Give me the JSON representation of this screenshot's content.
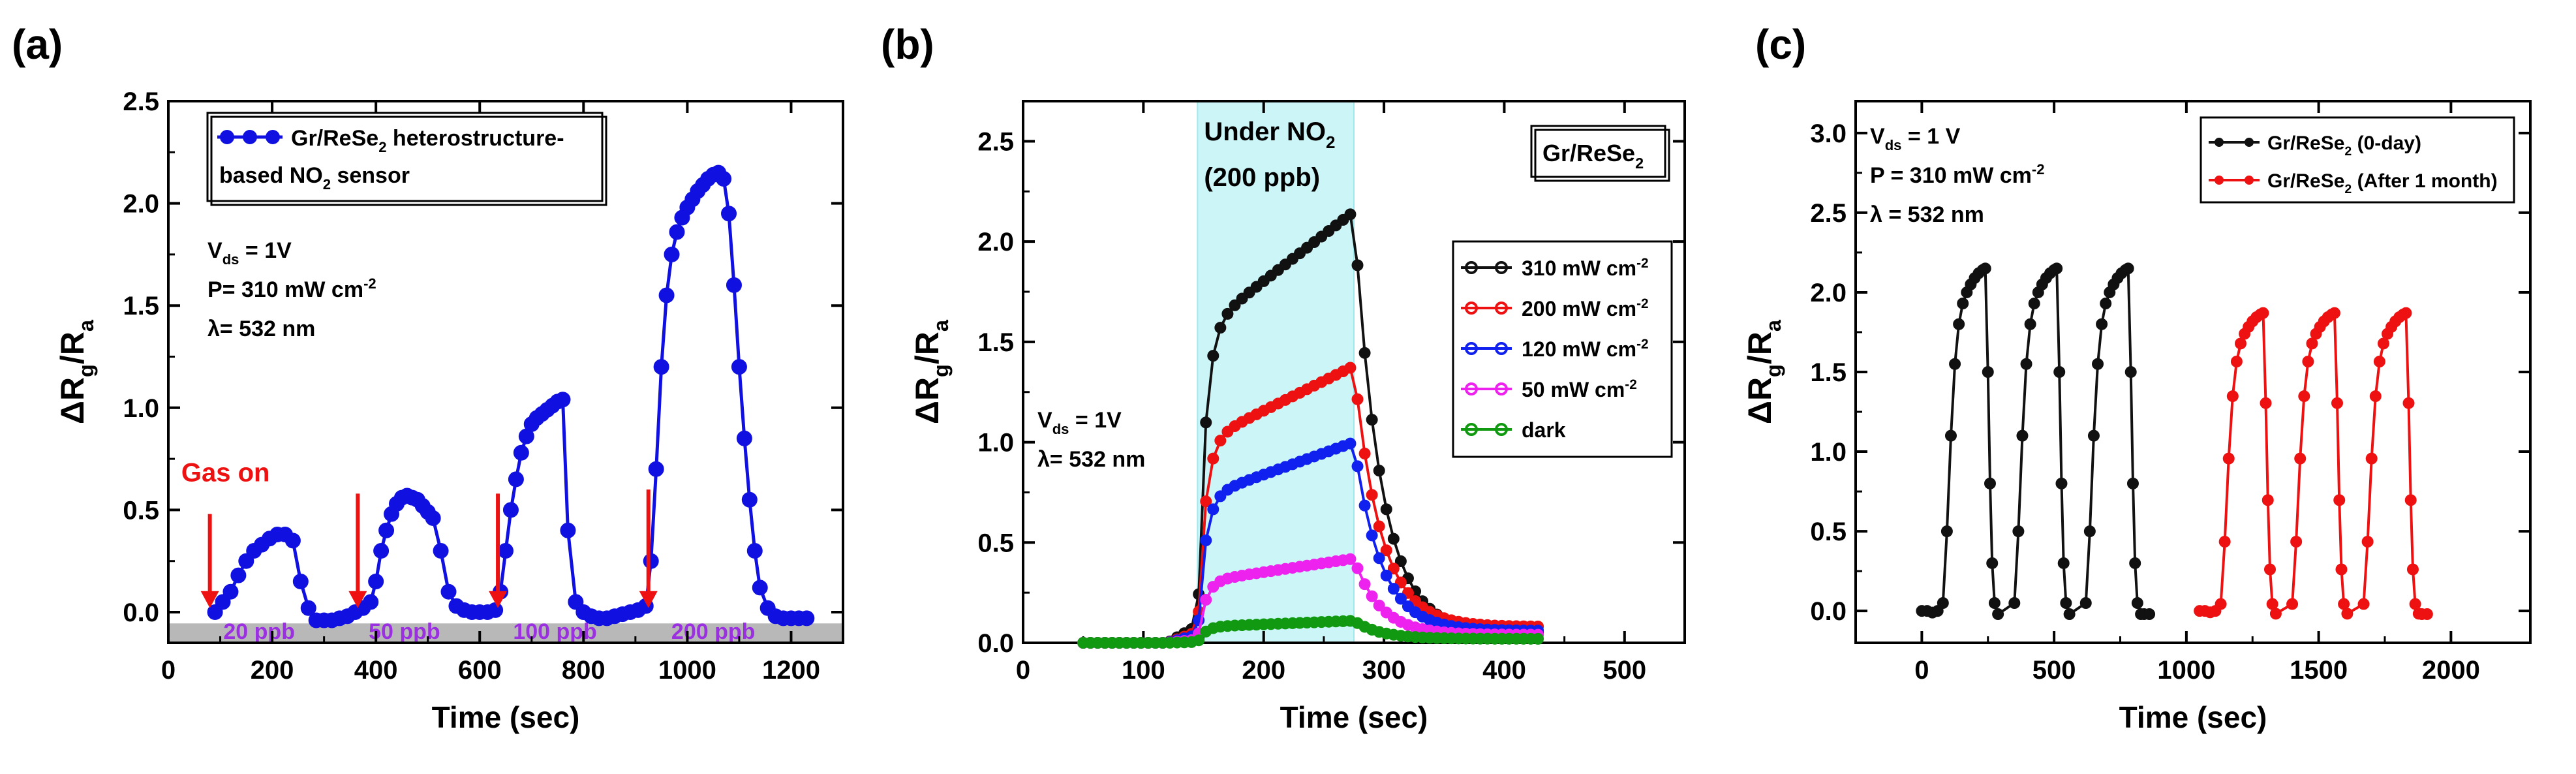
{
  "chart_data": [
    {
      "type": "line",
      "panel_label": "(a)",
      "xlabel": "Time (sec)",
      "ylabel": "ΔR",
      "ylabel_sub1": "g",
      "ylabel_mid": "/R",
      "ylabel_sub2": "a",
      "xlim": [
        0,
        1300
      ],
      "ylim": [
        -0.15,
        2.5
      ],
      "xticks": [
        0,
        200,
        400,
        600,
        800,
        1000,
        1200
      ],
      "yticks": [
        0.0,
        0.5,
        1.0,
        1.5,
        2.0,
        2.5
      ],
      "xtick_labels": [
        "0",
        "200",
        "400",
        "600",
        "800",
        "1000",
        "1200"
      ],
      "ytick_labels": [
        "0.0",
        "0.5",
        "1.0",
        "1.5",
        "2.0",
        "2.5"
      ],
      "color": "#1010e0",
      "legend": {
        "line1": "Gr/ReSe",
        "line1_sub": "2",
        "line1_tail": " heterostructure-",
        "line2": "based NO",
        "line2_sub": "2",
        "line2_tail": " sensor"
      },
      "conditions": {
        "vds": "V",
        "vds_sub": "ds",
        "vds_tail": " = 1V",
        "power": "P= 310 mW cm",
        "power_sup": "-2",
        "wavelength": "λ= 532 nm"
      },
      "gas_on_label": "Gas on",
      "gas_arrow_times": [
        80,
        365,
        635,
        925
      ],
      "concentration_labels": [
        "20 ppb",
        "50 ppb",
        "100 ppb",
        "200 ppb"
      ],
      "concentration_label_x": [
        175,
        455,
        745,
        1050
      ],
      "bar_y": [
        -0.15,
        -0.055
      ],
      "series": [
        {
          "name": "Gr/ReSe2 heterostructure-based NO2 sensor",
          "x": [
            90,
            105,
            120,
            135,
            150,
            165,
            180,
            195,
            210,
            225,
            240,
            255,
            270,
            285,
            300,
            315,
            330,
            345,
            360,
            375,
            390,
            400,
            410,
            420,
            430,
            440,
            450,
            460,
            470,
            480,
            490,
            500,
            510,
            525,
            540,
            555,
            570,
            585,
            600,
            615,
            630,
            640,
            650,
            660,
            670,
            680,
            690,
            700,
            710,
            720,
            730,
            740,
            750,
            760,
            770,
            785,
            800,
            815,
            830,
            845,
            860,
            875,
            890,
            905,
            920,
            930,
            940,
            950,
            960,
            970,
            980,
            990,
            1000,
            1010,
            1020,
            1030,
            1040,
            1050,
            1060,
            1070,
            1080,
            1090,
            1100,
            1110,
            1120,
            1130,
            1140,
            1155,
            1170,
            1185,
            1200,
            1215,
            1230
          ],
          "y": [
            0.0,
            0.05,
            0.1,
            0.18,
            0.25,
            0.3,
            0.33,
            0.36,
            0.38,
            0.38,
            0.35,
            0.15,
            0.02,
            -0.04,
            -0.04,
            -0.04,
            -0.03,
            -0.02,
            0.0,
            0.02,
            0.05,
            0.15,
            0.3,
            0.4,
            0.48,
            0.53,
            0.56,
            0.57,
            0.56,
            0.55,
            0.52,
            0.49,
            0.46,
            0.3,
            0.1,
            0.03,
            0.01,
            0.0,
            0.0,
            0.0,
            0.01,
            0.1,
            0.3,
            0.5,
            0.65,
            0.78,
            0.86,
            0.92,
            0.95,
            0.97,
            0.99,
            1.01,
            1.03,
            1.04,
            0.4,
            0.05,
            0.0,
            -0.02,
            -0.03,
            -0.03,
            -0.02,
            -0.01,
            0.0,
            0.01,
            0.03,
            0.25,
            0.7,
            1.2,
            1.55,
            1.75,
            1.86,
            1.93,
            1.98,
            2.02,
            2.06,
            2.09,
            2.12,
            2.14,
            2.15,
            2.12,
            1.95,
            1.6,
            1.2,
            0.85,
            0.55,
            0.3,
            0.12,
            0.02,
            -0.02,
            -0.03,
            -0.03,
            -0.03,
            -0.03
          ]
        }
      ]
    },
    {
      "type": "line",
      "panel_label": "(b)",
      "xlabel": "Time (sec)",
      "ylabel": "ΔR",
      "ylabel_sub1": "g",
      "ylabel_mid": "/R",
      "ylabel_sub2": "a",
      "xlim": [
        0,
        550
      ],
      "ylim": [
        0.0,
        2.7
      ],
      "xticks": [
        0,
        100,
        200,
        300,
        400,
        500
      ],
      "yticks": [
        0.0,
        0.5,
        1.0,
        1.5,
        2.0,
        2.5
      ],
      "xtick_labels": [
        "0",
        "100",
        "200",
        "300",
        "400",
        "500"
      ],
      "ytick_labels": [
        "0.0",
        "0.5",
        "1.0",
        "1.5",
        "2.0",
        "2.5"
      ],
      "shaded_region": [
        145,
        275
      ],
      "shaded_color": "#ccf5f8",
      "shaded_label1": "Under NO",
      "shaded_label1_sub": "2",
      "shaded_label2": "(200 ppb)",
      "box_label": "Gr/ReSe",
      "box_label_sub": "2",
      "conditions": {
        "vds": "V",
        "vds_sub": "ds",
        "vds_tail": " = 1V",
        "wavelength": "λ= 532 nm"
      },
      "series": [
        {
          "name": "310 mW cm",
          "sup": "-2",
          "color": "#111111",
          "gas_value": 2.15,
          "tail_value": 0.05
        },
        {
          "name": "200 mW cm",
          "sup": "-2",
          "color": "#ee1111",
          "gas_value": 1.38,
          "tail_value": 0.08
        },
        {
          "name": "120 mW cm",
          "sup": "-2",
          "color": "#1020ee",
          "gas_value": 1.0,
          "tail_value": 0.06
        },
        {
          "name": "50 mW cm",
          "sup": "-2",
          "color": "#ee22ee",
          "gas_value": 0.42,
          "tail_value": 0.04
        },
        {
          "name": "dark",
          "sup": "",
          "color": "#119911",
          "gas_value": 0.11,
          "tail_value": 0.02
        }
      ]
    },
    {
      "type": "line",
      "panel_label": "(c)",
      "xlabel": "Time (sec)",
      "ylabel": "ΔR",
      "ylabel_sub1": "g",
      "ylabel_mid": "/R",
      "ylabel_sub2": "a",
      "xlim": [
        -250,
        2300
      ],
      "ylim": [
        -0.2,
        3.2
      ],
      "xticks": [
        0,
        500,
        1000,
        1500,
        2000
      ],
      "yticks": [
        0.0,
        0.5,
        1.0,
        1.5,
        2.0,
        2.5,
        3.0
      ],
      "xtick_labels": [
        "0",
        "500",
        "1000",
        "1500",
        "2000"
      ],
      "ytick_labels": [
        "0.0",
        "0.5",
        "1.0",
        "1.5",
        "2.0",
        "2.5",
        "3.0"
      ],
      "conditions": {
        "vds": "V",
        "vds_sub": "ds",
        "vds_tail": " = 1 V",
        "power": "P = 310 mW cm",
        "power_sup": "-2",
        "wavelength": "λ = 532 nm"
      },
      "series": [
        {
          "name": "Gr/ReSe",
          "sub": "2",
          "tail": " (0-day)",
          "color": "#111111",
          "start": 0,
          "peak": 2.15,
          "cycle_starts": [
            0,
            270,
            540
          ]
        },
        {
          "name": "Gr/ReSe",
          "sub": "2",
          "tail": " (After 1 month)",
          "color": "#ee1111",
          "start": 1050,
          "peak": 1.87,
          "cycle_starts": [
            1050,
            1320,
            1590
          ]
        }
      ]
    }
  ]
}
